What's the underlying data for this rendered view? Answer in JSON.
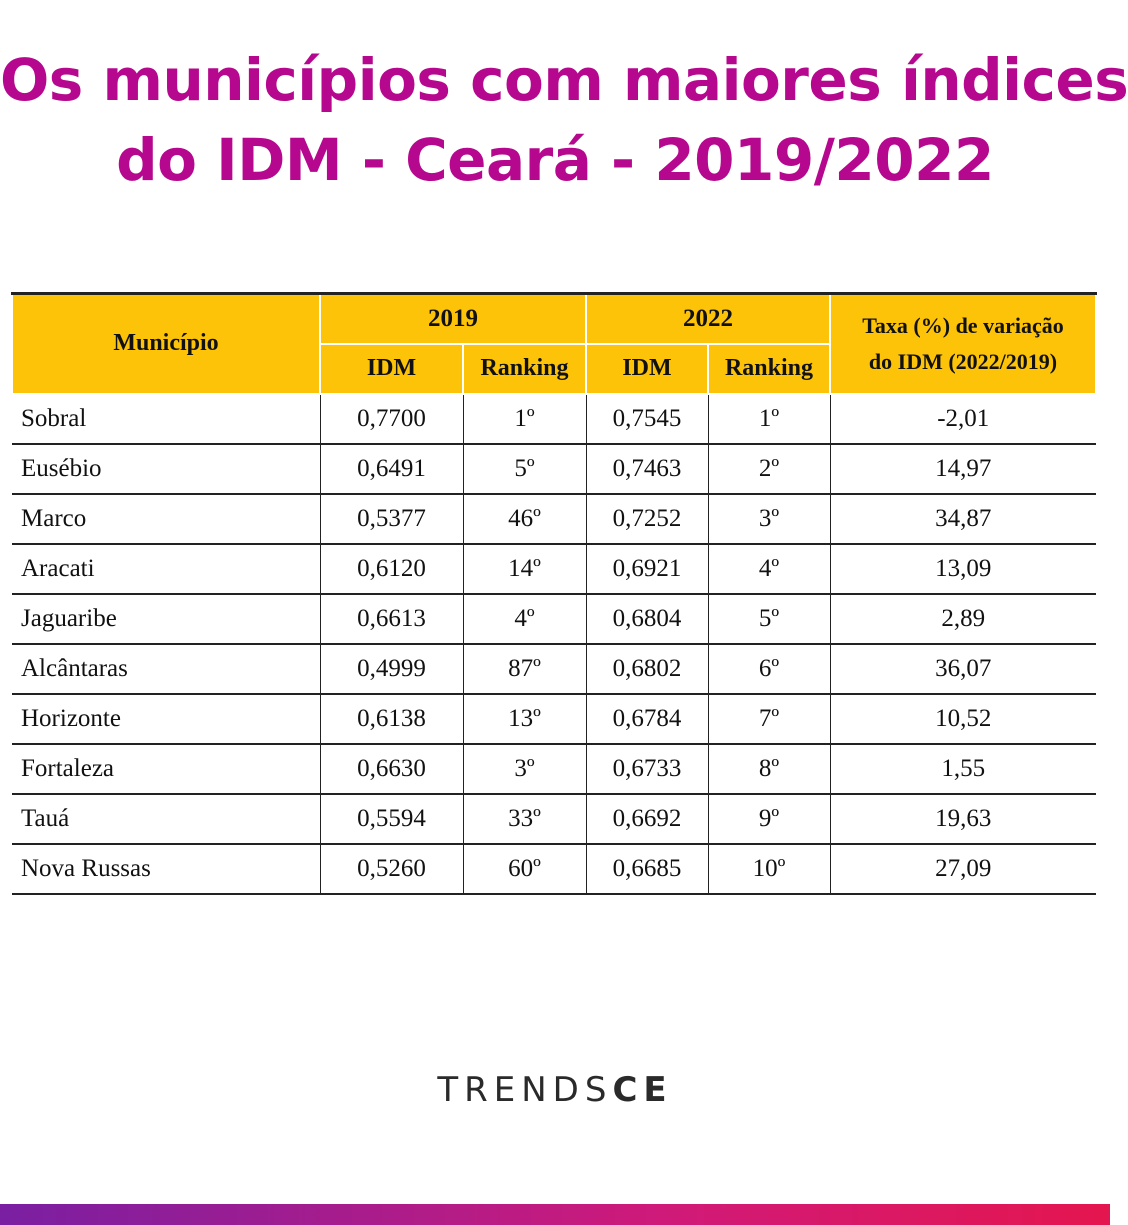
{
  "title": {
    "line1": "Os municípios com maiores índices",
    "line2": "do IDM - Ceará - 2019/2022"
  },
  "colors": {
    "title": "#b5088e",
    "header_bg": "#fcc309",
    "accent_bar": [
      "#7a1fa2",
      "#d01a79",
      "#e4164f"
    ]
  },
  "table": {
    "headers": {
      "municipio": "Município",
      "year1": "2019",
      "year2": "2022",
      "idm": "IDM",
      "ranking": "Ranking",
      "taxa_line1": "Taxa (%) de variação",
      "taxa_line2": "do IDM (2022/2019)"
    },
    "rows": [
      {
        "municipio": "Sobral",
        "idm2019": "0,7700",
        "rank2019": "1º",
        "idm2022": "0,7545",
        "rank2022": "1º",
        "taxa": "-2,01"
      },
      {
        "municipio": "Eusébio",
        "idm2019": "0,6491",
        "rank2019": "5º",
        "idm2022": "0,7463",
        "rank2022": "2º",
        "taxa": "14,97"
      },
      {
        "municipio": "Marco",
        "idm2019": "0,5377",
        "rank2019": "46º",
        "idm2022": "0,7252",
        "rank2022": "3º",
        "taxa": "34,87"
      },
      {
        "municipio": "Aracati",
        "idm2019": "0,6120",
        "rank2019": "14º",
        "idm2022": "0,6921",
        "rank2022": "4º",
        "taxa": "13,09"
      },
      {
        "municipio": "Jaguaribe",
        "idm2019": "0,6613",
        "rank2019": "4º",
        "idm2022": "0,6804",
        "rank2022": "5º",
        "taxa": "2,89"
      },
      {
        "municipio": "Alcântaras",
        "idm2019": "0,4999",
        "rank2019": "87º",
        "idm2022": "0,6802",
        "rank2022": "6º",
        "taxa": "36,07"
      },
      {
        "municipio": "Horizonte",
        "idm2019": "0,6138",
        "rank2019": "13º",
        "idm2022": "0,6784",
        "rank2022": "7º",
        "taxa": "10,52"
      },
      {
        "municipio": "Fortaleza",
        "idm2019": "0,6630",
        "rank2019": "3º",
        "idm2022": "0,6733",
        "rank2022": "8º",
        "taxa": "1,55"
      },
      {
        "municipio": "Tauá",
        "idm2019": "0,5594",
        "rank2019": "33º",
        "idm2022": "0,6692",
        "rank2022": "9º",
        "taxa": "19,63"
      },
      {
        "municipio": "Nova Russas",
        "idm2019": "0,5260",
        "rank2019": "60º",
        "idm2022": "0,6685",
        "rank2022": "10º",
        "taxa": "27,09"
      }
    ]
  },
  "chart_data": {
    "type": "table",
    "title": "Os municípios com maiores índices do IDM - Ceará - 2019/2022",
    "columns": [
      "Município",
      "2019 IDM",
      "2019 Ranking",
      "2022 IDM",
      "2022 Ranking",
      "Taxa (%) de variação do IDM (2022/2019)"
    ],
    "rows": [
      [
        "Sobral",
        0.77,
        1,
        0.7545,
        1,
        -2.01
      ],
      [
        "Eusébio",
        0.6491,
        5,
        0.7463,
        2,
        14.97
      ],
      [
        "Marco",
        0.5377,
        46,
        0.7252,
        3,
        34.87
      ],
      [
        "Aracati",
        0.612,
        14,
        0.6921,
        4,
        13.09
      ],
      [
        "Jaguaribe",
        0.6613,
        4,
        0.6804,
        5,
        2.89
      ],
      [
        "Alcântaras",
        0.4999,
        87,
        0.6802,
        6,
        36.07
      ],
      [
        "Horizonte",
        0.6138,
        13,
        0.6784,
        7,
        10.52
      ],
      [
        "Fortaleza",
        0.663,
        3,
        0.6733,
        8,
        1.55
      ],
      [
        "Tauá",
        0.5594,
        33,
        0.6692,
        9,
        19.63
      ],
      [
        "Nova Russas",
        0.526,
        60,
        0.6685,
        10,
        27.09
      ]
    ]
  },
  "branding": {
    "logo_part1": "TRENDS",
    "logo_part2": "CE"
  }
}
